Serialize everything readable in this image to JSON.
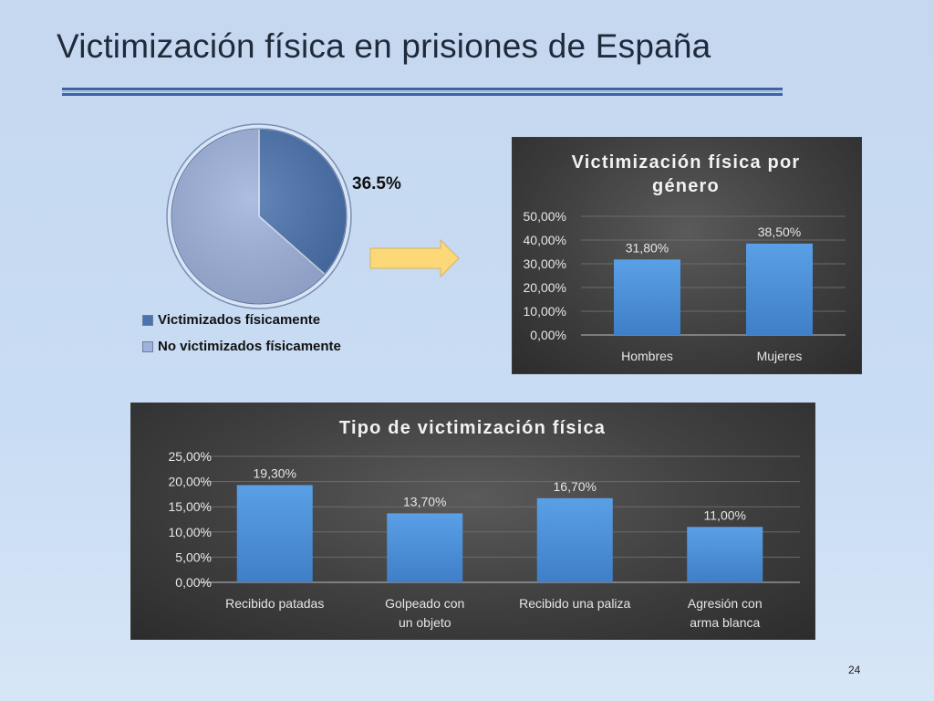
{
  "slide": {
    "title": "Victimización física en prisiones de España",
    "page_number": "24"
  },
  "colors": {
    "victimized": "#4a72ad",
    "not_victimized": "#9fb2dd",
    "bar": "#4a8fd8",
    "arrow": "#fcd878"
  },
  "pie": {
    "percent_label": "36.5%"
  },
  "icons": {
    "arrow": "right-arrow-icon"
  },
  "chart_data": [
    {
      "type": "pie",
      "slices": [
        {
          "label": "Victimizados físicamente",
          "value": 36.5
        },
        {
          "label": "No victimizados físicamente",
          "value": 63.5
        }
      ],
      "data_labels": [
        "36.5%"
      ],
      "legend_placement": "bottom-left"
    },
    {
      "type": "bar",
      "title": "Victimización física por género",
      "categories": [
        "Hombres",
        "Mujeres"
      ],
      "values": [
        31.8,
        38.5
      ],
      "data_labels": [
        "31,80%",
        "38,50%"
      ],
      "ylim": [
        0,
        50
      ],
      "yticks": [
        "0,00%",
        "10,00%",
        "20,00%",
        "30,00%",
        "40,00%",
        "50,00%"
      ],
      "grid": true
    },
    {
      "type": "bar",
      "title": "Tipo de victimización física",
      "categories": [
        "Recibido patadas",
        "Golpeado con un objeto",
        "Recibido una paliza",
        "Agresión con arma blanca"
      ],
      "values": [
        19.3,
        13.7,
        16.7,
        11.0
      ],
      "data_labels": [
        "19,30%",
        "13,70%",
        "16,70%",
        "11,00%"
      ],
      "ylim": [
        0,
        25
      ],
      "yticks": [
        "0,00%",
        "5,00%",
        "10,00%",
        "15,00%",
        "20,00%",
        "25,00%"
      ],
      "grid": true
    }
  ]
}
